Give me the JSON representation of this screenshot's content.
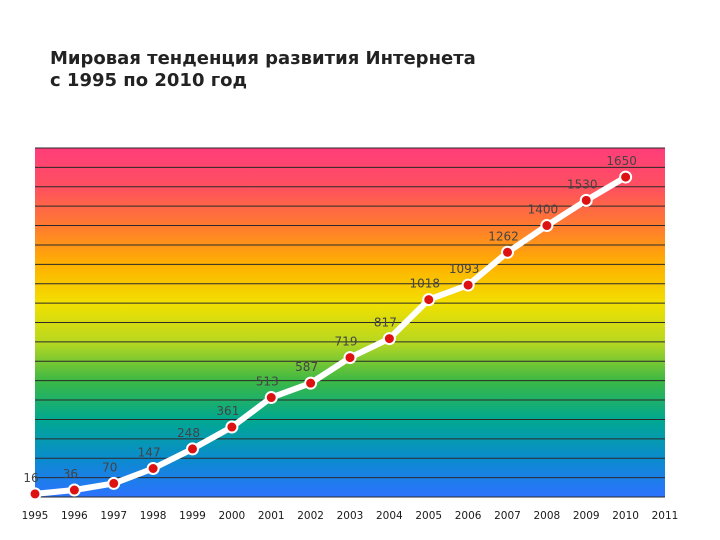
{
  "chart_data": {
    "type": "line",
    "title_line1": "Мировая тенденция развития Интернета",
    "title_line2": "с 1995 по 2010 год",
    "xlabel": "",
    "ylabel": "",
    "x_ticks": [
      "1995",
      "1996",
      "1997",
      "1998",
      "1999",
      "2000",
      "2001",
      "2002",
      "2003",
      "2004",
      "2005",
      "2006",
      "2007",
      "2008",
      "2009",
      "2010",
      "2011"
    ],
    "x": [
      1995,
      1996,
      1997,
      1998,
      1999,
      2000,
      2001,
      2002,
      2003,
      2004,
      2005,
      2006,
      2007,
      2008,
      2009,
      2010
    ],
    "values": [
      16,
      36,
      70,
      147,
      248,
      361,
      513,
      587,
      719,
      817,
      1018,
      1093,
      1262,
      1400,
      1530,
      1650
    ],
    "data_labels": [
      "16",
      "36",
      "70",
      "147",
      "248",
      "361",
      "513",
      "587",
      "719",
      "817",
      "1018",
      "1093",
      "1262",
      "1400",
      "1530",
      "1650"
    ],
    "xlim": [
      1995,
      2011
    ],
    "ylim": [
      0,
      1800
    ],
    "grid": true,
    "legend": "none",
    "colors": {
      "line": "#ffffff",
      "marker": "#dd1111",
      "marker_stroke": "#ffffff",
      "grid": "#2a2a2a",
      "gradient": [
        "#ff3d7a",
        "#ff5060",
        "#ff7a30",
        "#ffb000",
        "#f2e000",
        "#b8d820",
        "#3cb844",
        "#00a890",
        "#0a8ccd",
        "#2c72ff"
      ]
    }
  }
}
